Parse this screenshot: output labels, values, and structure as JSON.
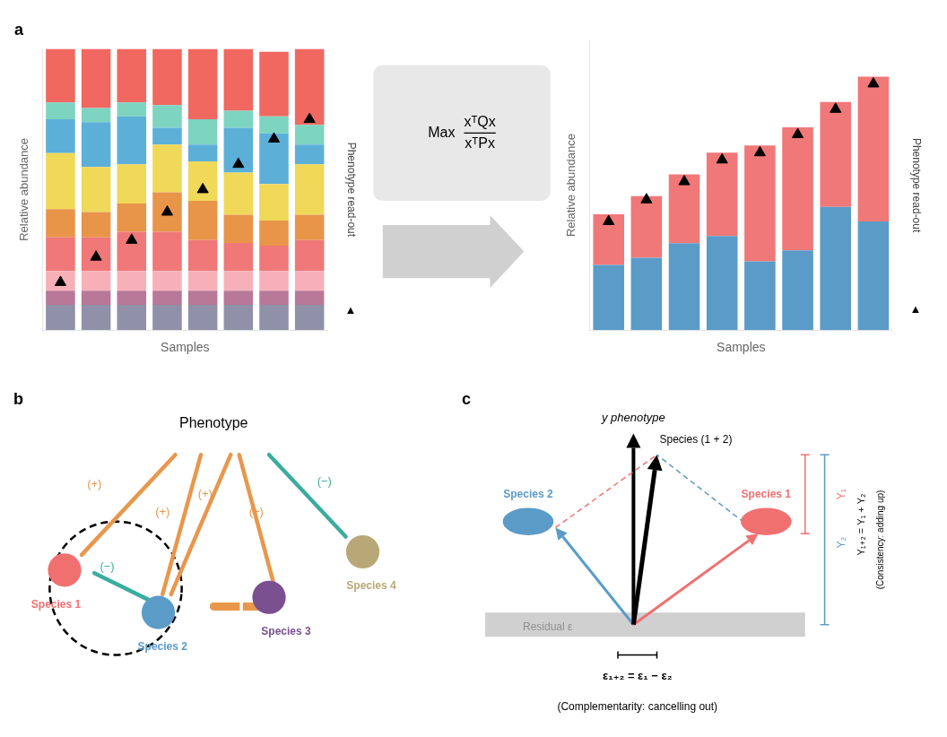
{
  "chart_data": [
    {
      "type": "bar",
      "title": "a",
      "stacked": true,
      "categories": [
        null,
        null,
        null,
        null,
        null,
        null,
        null,
        null
      ],
      "xlabel": "Samples",
      "ylabel": "Relative abundance",
      "ylim": [
        0,
        1.0
      ],
      "tick_labels": false,
      "grid": false,
      "annotations": [
        {
          "text": "Phenotype read-out"
        },
        {
          "text": "▲"
        }
      ],
      "series": [
        {
          "color": "#9090a8",
          "values": [
            0.09,
            0.09,
            0.09,
            0.09,
            0.09,
            0.09,
            0.09,
            0.09
          ]
        },
        {
          "color": "#b87898",
          "values": [
            0.05,
            0.05,
            0.05,
            0.05,
            0.05,
            0.05,
            0.05,
            0.05
          ]
        },
        {
          "color": "#f8b0b8",
          "values": [
            0.07,
            0.07,
            0.07,
            0.07,
            0.07,
            0.07,
            0.07,
            0.07
          ]
        },
        {
          "color": "#f07878",
          "values": [
            0.12,
            0.12,
            0.14,
            0.14,
            0.11,
            0.1,
            0.09,
            0.11
          ]
        },
        {
          "color": "#e8954a",
          "values": [
            0.1,
            0.09,
            0.1,
            0.14,
            0.14,
            0.1,
            0.09,
            0.09
          ]
        },
        {
          "color": "#f0d858",
          "values": [
            0.2,
            0.16,
            0.14,
            0.17,
            0.14,
            0.15,
            0.13,
            0.18
          ]
        },
        {
          "color": "#5cb0d8",
          "values": [
            0.12,
            0.16,
            0.17,
            0.06,
            0.06,
            0.16,
            0.18,
            0.07
          ]
        },
        {
          "color": "#7dd4c0",
          "values": [
            0.06,
            0.05,
            0.05,
            0.08,
            0.09,
            0.06,
            0.06,
            0.07
          ]
        },
        {
          "color": "#f06860",
          "values": [
            0.19,
            0.21,
            0.19,
            0.2,
            0.25,
            0.22,
            0.23,
            0.27
          ]
        },
        {
          "type": "scatter",
          "marker": "triangle",
          "color": "black",
          "values": [
            0.17,
            0.26,
            0.32,
            0.42,
            0.5,
            0.59,
            0.68,
            0.75
          ]
        }
      ]
    },
    {
      "type": "bar",
      "stacked": true,
      "categories": [
        null,
        null,
        null,
        null,
        null,
        null,
        null,
        null
      ],
      "xlabel": "Samples",
      "ylabel": "Relative abundance",
      "ylim": [
        0,
        0.8
      ],
      "tick_labels": false,
      "grid": false,
      "annotations": [
        {
          "text": "Phenotype read-out"
        },
        {
          "text": "▲"
        }
      ],
      "series": [
        {
          "color": "#5b9bc8",
          "values": [
            0.18,
            0.2,
            0.24,
            0.26,
            0.19,
            0.22,
            0.34,
            0.3
          ]
        },
        {
          "color": "#f07878",
          "values": [
            0.14,
            0.17,
            0.19,
            0.23,
            0.32,
            0.34,
            0.29,
            0.4
          ]
        },
        {
          "type": "scatter",
          "marker": "triangle",
          "color": "black",
          "values": [
            0.3,
            0.36,
            0.41,
            0.47,
            0.49,
            0.54,
            0.61,
            0.68
          ]
        }
      ]
    },
    {
      "type": "diagram",
      "annotations": [
        {
          "text": "Max"
        },
        {
          "text": "xᵀQx"
        },
        {
          "text": "xᵀPx"
        }
      ]
    },
    {
      "type": "diagram",
      "title": "b",
      "annotations": [
        {
          "text": "Phenotype"
        },
        {
          "text": "Species 1",
          "color": "#f07070"
        },
        {
          "text": "Species 2",
          "color": "#5b9bc8"
        },
        {
          "text": "Species 3",
          "color": "#7a5090"
        },
        {
          "text": "Species 4",
          "color": "#b8a878"
        },
        {
          "text": "(+)",
          "color": "#e8974c"
        },
        {
          "text": "(+)",
          "color": "#e8974c"
        },
        {
          "text": "(+)",
          "color": "#e8974c"
        },
        {
          "text": "(+)",
          "color": "#e8974c"
        },
        {
          "text": "(−)",
          "color": "#3aada0"
        },
        {
          "text": "(−)",
          "color": "#3aada0"
        }
      ]
    },
    {
      "type": "diagram",
      "title": "c",
      "annotations": [
        {
          "text": "Residual ε",
          "color": "#909090"
        },
        {
          "text": "y phenotype"
        },
        {
          "text": "Species (1 + 2)"
        },
        {
          "text": "Species 2",
          "color": "#5b9bc8"
        },
        {
          "text": "Species 1",
          "color": "#f07070"
        },
        {
          "text": "Y₁",
          "color": "#f07070"
        },
        {
          "text": "Y₂",
          "color": "#5b9bc8"
        },
        {
          "text": "Y₁₊₂ = Y₁ + Y₂"
        },
        {
          "text": "(Consistency: adding up)"
        },
        {
          "text": "ε₁₊₂ = ε₁ − ε₂"
        },
        {
          "text": "(Complementarity: cancelling out)"
        }
      ]
    }
  ]
}
